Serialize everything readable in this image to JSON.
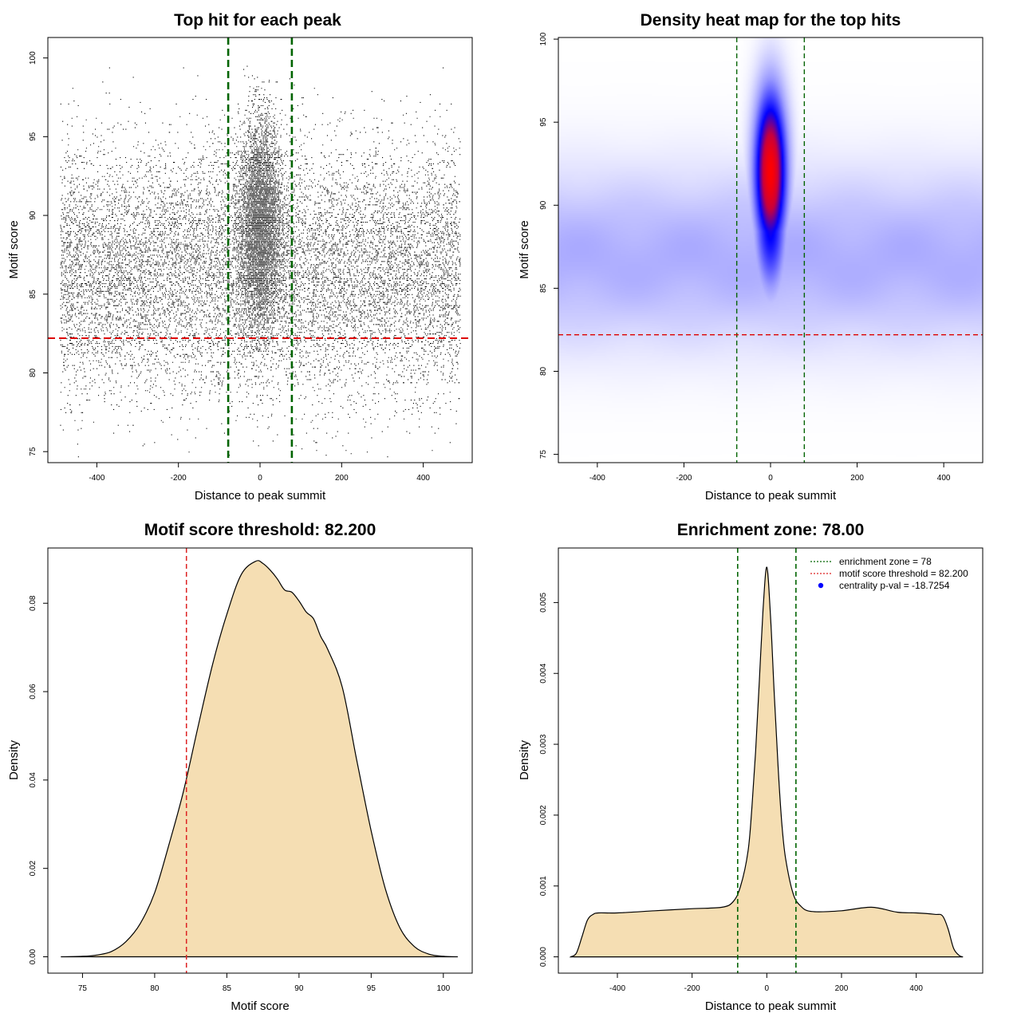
{
  "chart_data": [
    {
      "id": "scatter",
      "type": "scatter",
      "title": "Top hit for each peak",
      "xlabel": "Distance to peak summit",
      "ylabel": "Motif score",
      "xlim": [
        -520,
        520
      ],
      "ylim": [
        74.3,
        101.3
      ],
      "xticks": [
        -400,
        -200,
        0,
        200,
        400
      ],
      "yticks": [
        75,
        80,
        85,
        90,
        95,
        100
      ],
      "point_color": "#000000",
      "vlines": [
        -78,
        78
      ],
      "vline_color": "#006400",
      "hline": 82.2,
      "hline_color": "#dd0000",
      "background_points": {
        "x_range": [
          -490,
          490
        ],
        "score_mean": 86.5,
        "score_sd": 3.9,
        "count": 16000
      },
      "central_points": {
        "x_center": 0,
        "x_sd": 26,
        "score_mean": 89.5,
        "score_sd": 3.3,
        "count": 9000
      }
    },
    {
      "id": "heatmap",
      "type": "heatmap",
      "title": "Density heat map for the top hits",
      "xlabel": "Distance to peak summit",
      "ylabel": "Motif score",
      "xlim": [
        -490,
        490
      ],
      "ylim": [
        74.5,
        100.1
      ],
      "xticks": [
        -400,
        -200,
        0,
        200,
        400
      ],
      "yticks": [
        75,
        80,
        85,
        90,
        95,
        100
      ],
      "colors": [
        "#ffffff",
        "#9a9aff",
        "#0000ff",
        "#ff0000"
      ],
      "peak": {
        "x": 0,
        "score": 92.0,
        "x_sd": 26,
        "score_sd": 3.4
      },
      "vlines": [
        -78,
        78
      ],
      "vline_color": "#006400",
      "hline": 82.2,
      "hline_color": "#dd0000"
    },
    {
      "id": "score_density",
      "type": "area",
      "title": "Motif score threshold: 82.200",
      "xlabel": "Motif score",
      "ylabel": "Density",
      "xlim": [
        72.6,
        102.0
      ],
      "ylim": [
        -0.0037,
        0.0925
      ],
      "xticks": [
        75,
        80,
        85,
        90,
        95,
        100
      ],
      "yticks": [
        0.0,
        0.02,
        0.04,
        0.06,
        0.08
      ],
      "ytick_labels": [
        "0.00",
        "0.02",
        "0.04",
        "0.06",
        "0.08"
      ],
      "fill_color": "#f5deb3",
      "x": [
        73.5,
        75,
        76,
        77,
        78,
        79,
        80,
        81,
        82,
        83,
        84,
        85,
        86,
        87,
        87.5,
        88,
        88.5,
        89,
        89.5,
        90,
        90.5,
        91,
        91.5,
        92,
        93,
        94,
        95,
        96,
        97,
        98,
        99,
        100,
        101
      ],
      "y": [
        0.0,
        0.0001,
        0.0004,
        0.0012,
        0.0034,
        0.0075,
        0.0145,
        0.0255,
        0.0375,
        0.052,
        0.066,
        0.0775,
        0.0865,
        0.0895,
        0.089,
        0.0875,
        0.0855,
        0.083,
        0.0825,
        0.0805,
        0.078,
        0.0765,
        0.0725,
        0.0695,
        0.061,
        0.0445,
        0.0285,
        0.0152,
        0.0065,
        0.0023,
        0.0006,
        0.0001,
        0.0
      ],
      "vline": 82.2,
      "vline_color": "#dd2222"
    },
    {
      "id": "distance_density",
      "type": "area",
      "title": "Enrichment zone: 78.00",
      "xlabel": "Distance to peak summit",
      "ylabel": "Density",
      "xlim": [
        -558,
        578
      ],
      "ylim": [
        -0.00023,
        0.00577
      ],
      "xticks": [
        -400,
        -200,
        0,
        200,
        400
      ],
      "yticks": [
        0.0,
        0.001,
        0.002,
        0.003,
        0.004,
        0.005
      ],
      "ytick_labels": [
        "0.000",
        "0.001",
        "0.002",
        "0.003",
        "0.004",
        "0.005"
      ],
      "fill_color": "#f5deb3",
      "x": [
        -525,
        -510,
        -495,
        -480,
        -465,
        -450,
        -400,
        -300,
        -200,
        -120,
        -90,
        -70,
        -50,
        -40,
        -30,
        -20,
        -10,
        0,
        10,
        20,
        30,
        40,
        50,
        70,
        90,
        120,
        200,
        280,
        350,
        400,
        450,
        470,
        485,
        500,
        515,
        525
      ],
      "y": [
        0.0,
        5e-05,
        0.00028,
        0.00052,
        0.0006,
        0.00062,
        0.00062,
        0.00065,
        0.00068,
        0.0007,
        0.00078,
        0.001,
        0.0015,
        0.0021,
        0.0029,
        0.0039,
        0.0049,
        0.0055,
        0.0048,
        0.0037,
        0.0027,
        0.0019,
        0.0014,
        0.0009,
        0.00072,
        0.00064,
        0.00065,
        0.0007,
        0.00063,
        0.00062,
        0.0006,
        0.00058,
        0.0004,
        0.00012,
        2e-05,
        0.0
      ],
      "vlines": [
        -78,
        78
      ],
      "vline_color": "#006400",
      "legend": {
        "position": "top-right",
        "entries": [
          {
            "label": "enrichment zone = 78",
            "color": "#006400",
            "style": "dotted-line"
          },
          {
            "label": "motif score threshold = 82.200",
            "color": "#dd2222",
            "style": "dotted-line"
          },
          {
            "label": "centrality p-val = -18.7254",
            "color": "#0000ff",
            "style": "point"
          }
        ]
      }
    }
  ]
}
